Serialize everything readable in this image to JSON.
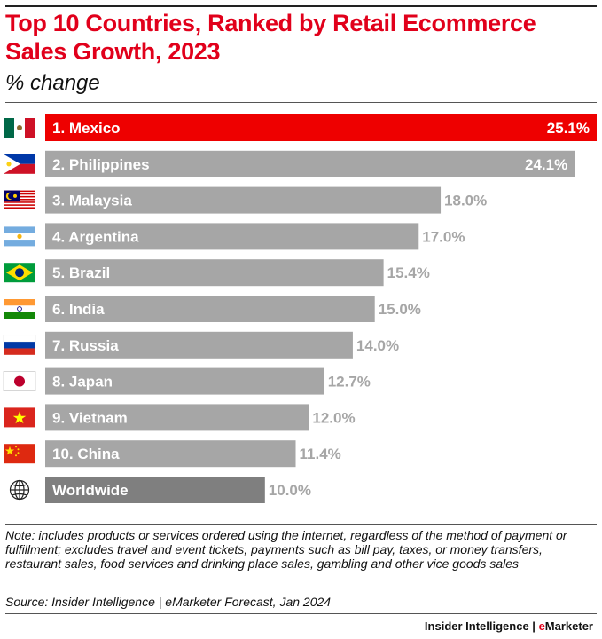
{
  "header": {
    "title": "Top 10 Countries, Ranked by Retail  Ecommerce Sales Growth, 2023",
    "subtitle": "% change"
  },
  "footer": {
    "note": "Note: includes products or services ordered using the internet, regardless of the method of payment or fulfillment; excludes travel and event tickets, payments such as bill pay, taxes, or money transfers, restaurant sales, food services and drinking place sales, gambling and other vice goods sales",
    "source": "Source: Insider Intelligence  | eMarketer Forecast, Jan 2024",
    "brand_left": "Insider Intelligence",
    "brand_sep": " | ",
    "brand_e": "e",
    "brand_right": "Marketer"
  },
  "colors": {
    "highlight": "#ee0000",
    "bar": "#a6a6a6",
    "worldwide": "#7f7f7f",
    "value_outside": "#a6a6a6",
    "value_inside": "#ffffff"
  },
  "chart_data": {
    "type": "bar",
    "orientation": "horizontal",
    "categories": [
      "1. Mexico",
      "2. Philippines",
      "3. Malaysia",
      "4. Argentina",
      "5. Brazil",
      "6. India",
      "7. Russia",
      "8. Japan",
      "9. Vietnam",
      "10. China",
      "Worldwide"
    ],
    "values": [
      25.1,
      24.1,
      18.0,
      17.0,
      15.4,
      15.0,
      14.0,
      12.7,
      12.0,
      11.4,
      10.0
    ],
    "value_labels": [
      "25.1%",
      "24.1%",
      "18.0%",
      "17.0%",
      "15.4%",
      "15.0%",
      "14.0%",
      "12.7%",
      "12.0%",
      "11.4%",
      "10.0%"
    ],
    "icons": [
      "mexico-flag-icon",
      "philippines-flag-icon",
      "malaysia-flag-icon",
      "argentina-flag-icon",
      "brazil-flag-icon",
      "india-flag-icon",
      "russia-flag-icon",
      "japan-flag-icon",
      "vietnam-flag-icon",
      "china-flag-icon",
      "globe-icon"
    ],
    "xlim": [
      0,
      25.1
    ],
    "grid": false,
    "legend": "none"
  }
}
